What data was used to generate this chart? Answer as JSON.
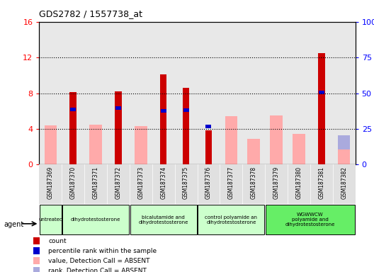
{
  "title": "GDS2782 / 1557738_at",
  "samples": [
    "GSM187369",
    "GSM187370",
    "GSM187371",
    "GSM187372",
    "GSM187373",
    "GSM187374",
    "GSM187375",
    "GSM187376",
    "GSM187377",
    "GSM187378",
    "GSM187379",
    "GSM187380",
    "GSM187381",
    "GSM187382"
  ],
  "count_values": [
    null,
    8.1,
    null,
    8.2,
    null,
    10.1,
    8.6,
    3.8,
    null,
    null,
    null,
    null,
    12.5,
    null
  ],
  "rank_values_left": [
    null,
    6.2,
    null,
    6.3,
    null,
    6.0,
    6.1,
    4.3,
    null,
    null,
    null,
    null,
    8.1,
    null
  ],
  "absent_value": [
    4.4,
    null,
    4.5,
    null,
    4.3,
    null,
    null,
    null,
    5.4,
    2.9,
    5.5,
    3.4,
    null,
    1.7
  ],
  "absent_rank": [
    null,
    null,
    null,
    null,
    null,
    null,
    null,
    null,
    null,
    null,
    5.5,
    3.3,
    null,
    3.3
  ],
  "agent_groups": [
    {
      "label": "untreated",
      "start": 0,
      "end": 0,
      "color": "#ccffcc"
    },
    {
      "label": "dihydrotestosterone",
      "start": 1,
      "end": 3,
      "color": "#ccffcc"
    },
    {
      "label": "bicalutamide and\ndihydrotestosterone",
      "start": 4,
      "end": 6,
      "color": "#ccffcc"
    },
    {
      "label": "control polyamide an\ndihydrotestosterone",
      "start": 7,
      "end": 9,
      "color": "#ccffcc"
    },
    {
      "label": "WGWWCW\npolyamide and\ndihydrotestosterone",
      "start": 10,
      "end": 13,
      "color": "#66ee66"
    }
  ],
  "col_bg_colors": [
    "#e8e8e8",
    "#e8e8e8",
    "#e8e8e8",
    "#e8e8e8",
    "#e8e8e8",
    "#e8e8e8",
    "#e8e8e8",
    "#e8e8e8",
    "#e8e8e8",
    "#e8e8e8",
    "#e8e8e8",
    "#e8e8e8",
    "#e8e8e8",
    "#e8e8e8"
  ],
  "ylim_left": [
    0,
    16
  ],
  "ylim_right": [
    0,
    100
  ],
  "yticks_left": [
    0,
    4,
    8,
    12,
    16
  ],
  "yticks_right": [
    0,
    25,
    50,
    75,
    100
  ],
  "yticklabels_left": [
    "0",
    "4",
    "8",
    "12",
    "16"
  ],
  "yticklabels_right": [
    "0",
    "25",
    "50",
    "75",
    "100%"
  ],
  "count_color": "#cc0000",
  "rank_color": "#0000cc",
  "absent_value_color": "#ffaaaa",
  "absent_rank_color": "#aaaadd",
  "legend": [
    {
      "color": "#cc0000",
      "label": "count"
    },
    {
      "color": "#0000cc",
      "label": "percentile rank within the sample"
    },
    {
      "color": "#ffaaaa",
      "label": "value, Detection Call = ABSENT"
    },
    {
      "color": "#aaaadd",
      "label": "rank, Detection Call = ABSENT"
    }
  ]
}
